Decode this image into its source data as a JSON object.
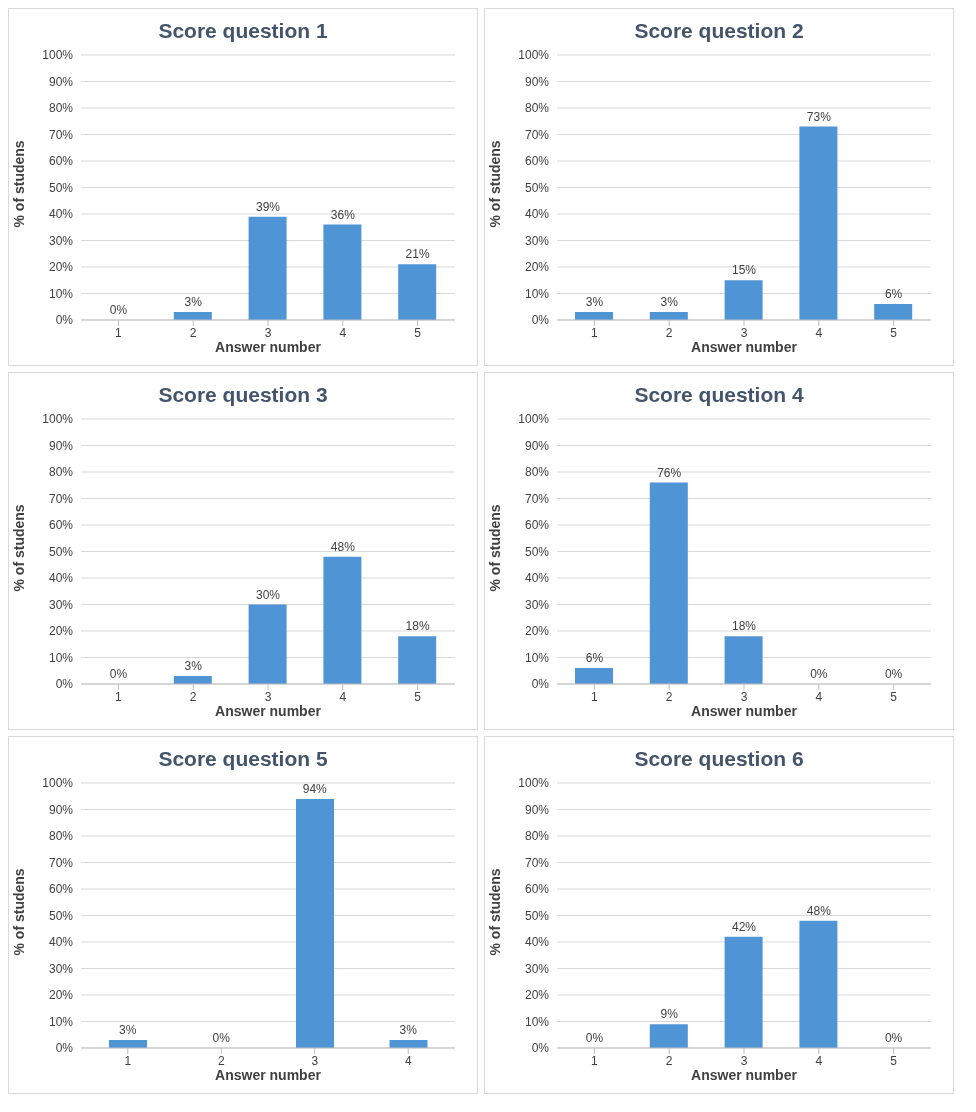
{
  "chart_data": [
    {
      "type": "bar",
      "title": "Score question 1",
      "xlabel": "Answer number",
      "ylabel": "% of studens",
      "categories": [
        "1",
        "2",
        "3",
        "4",
        "5"
      ],
      "values": [
        0,
        3,
        39,
        36,
        21
      ],
      "value_labels": [
        "0%",
        "3%",
        "39%",
        "36%",
        "21%"
      ],
      "color": "#4f94d4",
      "ylim": [
        0,
        100
      ],
      "yticks": [
        {
          "value": 0,
          "label": "0%"
        },
        {
          "value": 10,
          "label": "10%"
        },
        {
          "value": 20,
          "label": "20%"
        },
        {
          "value": 30,
          "label": "30%"
        },
        {
          "value": 40,
          "label": "40%"
        },
        {
          "value": 50,
          "label": "50%"
        },
        {
          "value": 60,
          "label": "60%"
        },
        {
          "value": 70,
          "label": "70%"
        },
        {
          "value": 80,
          "label": "80%"
        },
        {
          "value": 90,
          "label": "90%"
        },
        {
          "value": 100,
          "label": "100%"
        }
      ],
      "grid": "y"
    },
    {
      "type": "bar",
      "title": "Score question 2",
      "xlabel": "Answer number",
      "ylabel": "% of studens",
      "categories": [
        "1",
        "2",
        "3",
        "4",
        "5"
      ],
      "values": [
        3,
        3,
        15,
        73,
        6
      ],
      "value_labels": [
        "3%",
        "3%",
        "15%",
        "73%",
        "6%"
      ],
      "color": "#4f94d4",
      "ylim": [
        0,
        100
      ],
      "yticks": [
        {
          "value": 0,
          "label": "0%"
        },
        {
          "value": 10,
          "label": "10%"
        },
        {
          "value": 20,
          "label": "20%"
        },
        {
          "value": 30,
          "label": "30%"
        },
        {
          "value": 40,
          "label": "40%"
        },
        {
          "value": 50,
          "label": "50%"
        },
        {
          "value": 60,
          "label": "60%"
        },
        {
          "value": 70,
          "label": "70%"
        },
        {
          "value": 80,
          "label": "80%"
        },
        {
          "value": 90,
          "label": "90%"
        },
        {
          "value": 100,
          "label": "100%"
        }
      ],
      "grid": "y"
    },
    {
      "type": "bar",
      "title": "Score question 3",
      "xlabel": "Answer number",
      "ylabel": "% of studens",
      "categories": [
        "1",
        "2",
        "3",
        "4",
        "5"
      ],
      "values": [
        0,
        3,
        30,
        48,
        18
      ],
      "value_labels": [
        "0%",
        "3%",
        "30%",
        "48%",
        "18%"
      ],
      "color": "#4f94d4",
      "ylim": [
        0,
        100
      ],
      "yticks": [
        {
          "value": 0,
          "label": "0%"
        },
        {
          "value": 10,
          "label": "10%"
        },
        {
          "value": 20,
          "label": "20%"
        },
        {
          "value": 30,
          "label": "30%"
        },
        {
          "value": 40,
          "label": "40%"
        },
        {
          "value": 50,
          "label": "50%"
        },
        {
          "value": 60,
          "label": "60%"
        },
        {
          "value": 70,
          "label": "70%"
        },
        {
          "value": 80,
          "label": "80%"
        },
        {
          "value": 90,
          "label": "90%"
        },
        {
          "value": 100,
          "label": "100%"
        }
      ],
      "grid": "y"
    },
    {
      "type": "bar",
      "title": "Score question 4",
      "xlabel": "Answer number",
      "ylabel": "% of studens",
      "categories": [
        "1",
        "2",
        "3",
        "4",
        "5"
      ],
      "values": [
        6,
        76,
        18,
        0,
        0
      ],
      "value_labels": [
        "6%",
        "76%",
        "18%",
        "0%",
        "0%"
      ],
      "color": "#4f94d4",
      "ylim": [
        0,
        100
      ],
      "yticks": [
        {
          "value": 0,
          "label": "0%"
        },
        {
          "value": 10,
          "label": "10%"
        },
        {
          "value": 20,
          "label": "20%"
        },
        {
          "value": 30,
          "label": "30%"
        },
        {
          "value": 40,
          "label": "40%"
        },
        {
          "value": 50,
          "label": "50%"
        },
        {
          "value": 60,
          "label": "60%"
        },
        {
          "value": 70,
          "label": "70%"
        },
        {
          "value": 80,
          "label": "80%"
        },
        {
          "value": 90,
          "label": "90%"
        },
        {
          "value": 100,
          "label": "100%"
        }
      ],
      "grid": "y"
    },
    {
      "type": "bar",
      "title": "Score question 5",
      "xlabel": "Answer number",
      "ylabel": "% of studens",
      "categories": [
        "1",
        "2",
        "3",
        "4"
      ],
      "values": [
        3,
        0,
        94,
        3
      ],
      "value_labels": [
        "3%",
        "0%",
        "94%",
        "3%"
      ],
      "color": "#4f94d4",
      "ylim": [
        0,
        100
      ],
      "yticks": [
        {
          "value": 0,
          "label": "0%"
        },
        {
          "value": 10,
          "label": "10%"
        },
        {
          "value": 20,
          "label": "20%"
        },
        {
          "value": 30,
          "label": "30%"
        },
        {
          "value": 40,
          "label": "40%"
        },
        {
          "value": 50,
          "label": "50%"
        },
        {
          "value": 60,
          "label": "60%"
        },
        {
          "value": 70,
          "label": "70%"
        },
        {
          "value": 80,
          "label": "80%"
        },
        {
          "value": 90,
          "label": "90%"
        },
        {
          "value": 100,
          "label": "100%"
        }
      ],
      "grid": "y"
    },
    {
      "type": "bar",
      "title": "Score question 6",
      "xlabel": "Answer number",
      "ylabel": "% of studens",
      "categories": [
        "1",
        "2",
        "3",
        "4",
        "5"
      ],
      "values": [
        0,
        9,
        42,
        48,
        0
      ],
      "value_labels": [
        "0%",
        "9%",
        "42%",
        "48%",
        "0%"
      ],
      "color": "#4f94d4",
      "ylim": [
        0,
        100
      ],
      "yticks": [
        {
          "value": 0,
          "label": "0%"
        },
        {
          "value": 10,
          "label": "10%"
        },
        {
          "value": 20,
          "label": "20%"
        },
        {
          "value": 30,
          "label": "30%"
        },
        {
          "value": 40,
          "label": "40%"
        },
        {
          "value": 50,
          "label": "50%"
        },
        {
          "value": 60,
          "label": "60%"
        },
        {
          "value": 70,
          "label": "70%"
        },
        {
          "value": 80,
          "label": "80%"
        },
        {
          "value": 90,
          "label": "90%"
        },
        {
          "value": 100,
          "label": "100%"
        }
      ],
      "grid": "y"
    }
  ]
}
